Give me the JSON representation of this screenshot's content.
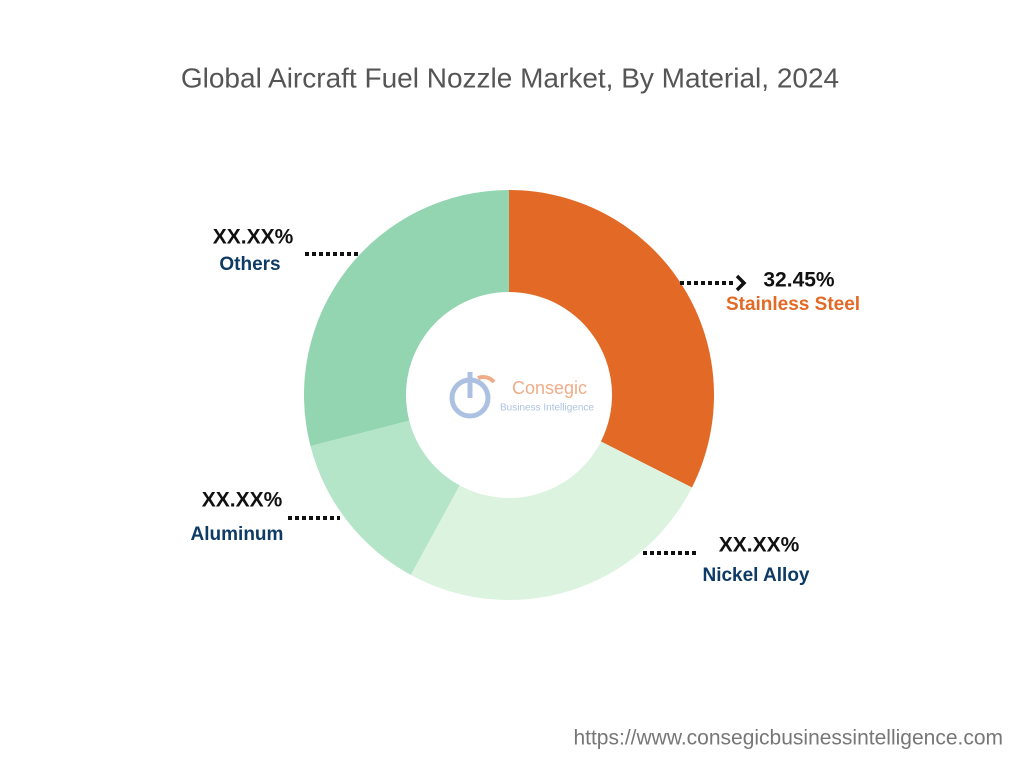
{
  "chart_data": {
    "type": "pie",
    "donut": true,
    "title": "Global Aircraft Fuel Nozzle Market, By Material, 2024",
    "categories": [
      "Stainless Steel",
      "Nickel Alloy",
      "Aluminum",
      "Others"
    ],
    "values": [
      32.45,
      25.5,
      13.05,
      29.0
    ],
    "value_labels": [
      "32.45%",
      "XX.XX%",
      "XX.XX%",
      "XX.XX%"
    ],
    "colors": [
      "#e36a26",
      "#dcf3e0",
      "#b5e5c8",
      "#93d5b0"
    ],
    "label_colors": [
      "#e36a26",
      "#0d3b66",
      "#0d3b66",
      "#0d3b66"
    ]
  },
  "watermark": {
    "name": "Consegic",
    "tagline": "Business Intelligence"
  },
  "footer_url": "https://www.consegicbusinessintelligence.com"
}
